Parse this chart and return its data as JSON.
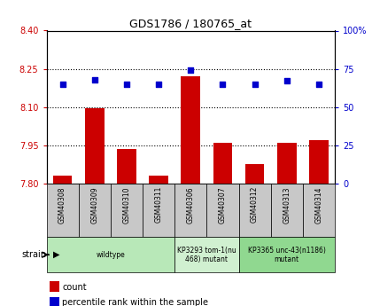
{
  "title": "GDS1786 / 180765_at",
  "samples": [
    "GSM40308",
    "GSM40309",
    "GSM40310",
    "GSM40311",
    "GSM40306",
    "GSM40307",
    "GSM40312",
    "GSM40313",
    "GSM40314"
  ],
  "count_values": [
    7.83,
    8.095,
    7.935,
    7.83,
    8.22,
    7.96,
    7.875,
    7.96,
    7.97
  ],
  "percentile_values": [
    65,
    68,
    65,
    65,
    74,
    65,
    65,
    67,
    65
  ],
  "ylim_left": [
    7.8,
    8.4
  ],
  "ylim_right": [
    0,
    100
  ],
  "yticks_left": [
    7.8,
    7.95,
    8.1,
    8.25,
    8.4
  ],
  "yticks_right": [
    0,
    25,
    50,
    75,
    100
  ],
  "hlines": [
    7.95,
    8.1,
    8.25
  ],
  "strain_groups": [
    {
      "label": "wildtype",
      "indices": [
        0,
        1,
        2,
        3
      ],
      "color": "#b8e8b8"
    },
    {
      "label": "KP3293 tom-1(nu\n468) mutant",
      "indices": [
        4,
        5
      ],
      "color": "#d0f0d0"
    },
    {
      "label": "KP3365 unc-43(n1186)\nmutant",
      "indices": [
        6,
        7,
        8
      ],
      "color": "#90d890"
    }
  ],
  "bar_color": "#cc0000",
  "dot_color": "#0000cc",
  "bar_width": 0.6,
  "left_tick_color": "#cc0000",
  "right_tick_color": "#0000cc",
  "legend_count_label": "count",
  "legend_percentile_label": "percentile rank within the sample",
  "background_sample_row": "#c8c8c8"
}
